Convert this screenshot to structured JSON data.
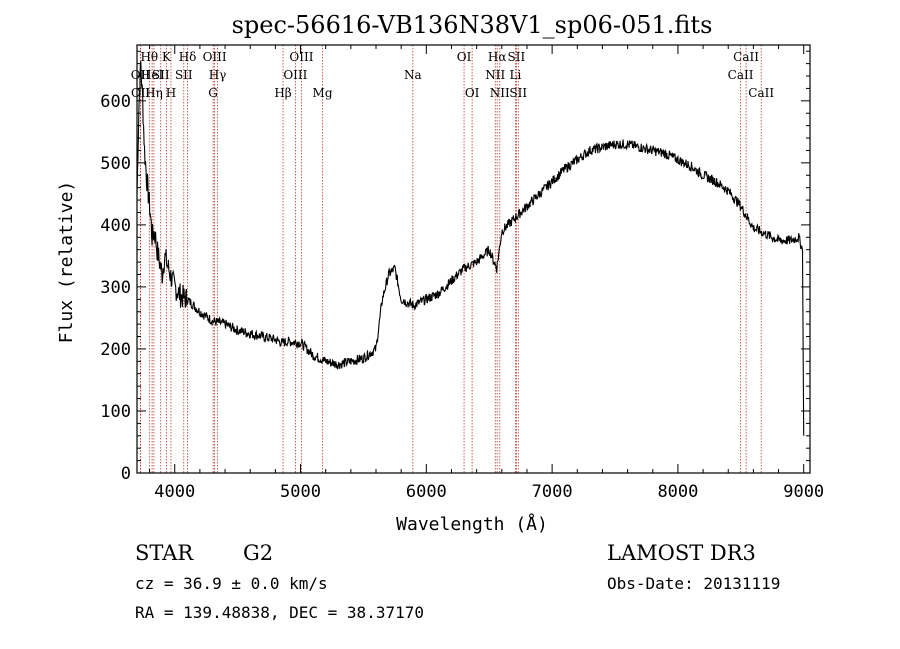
{
  "chart_data": {
    "type": "line",
    "title": "spec-56616-VB136N38V1_sp06-051.fits",
    "xlabel": "Wavelength (Å)",
    "ylabel": "Flux (relative)",
    "xlim": [
      3700,
      9050
    ],
    "ylim": [
      0,
      690
    ],
    "x_ticks": [
      4000,
      5000,
      6000,
      7000,
      8000,
      9000
    ],
    "y_ticks": [
      0,
      100,
      200,
      300,
      400,
      500,
      600
    ],
    "series": [
      {
        "name": "flux",
        "x": [
          3700,
          3715,
          3730,
          3745,
          3760,
          3775,
          3790,
          3805,
          3820,
          3840,
          3860,
          3880,
          3900,
          3920,
          3950,
          3980,
          4000,
          4050,
          4100,
          4150,
          4200,
          4300,
          4400,
          4500,
          4600,
          4700,
          4800,
          4850,
          4900,
          5000,
          5100,
          5150,
          5200,
          5300,
          5400,
          5500,
          5600,
          5650,
          5700,
          5750,
          5800,
          5850,
          5900,
          6000,
          6100,
          6200,
          6300,
          6400,
          6500,
          6560,
          6600,
          6700,
          6800,
          6900,
          7000,
          7100,
          7200,
          7300,
          7400,
          7500,
          7600,
          7700,
          7800,
          7900,
          8000,
          8100,
          8200,
          8300,
          8400,
          8500,
          8600,
          8700,
          8800,
          8900,
          8960,
          8990,
          9000
        ],
        "y": [
          450,
          590,
          660,
          600,
          520,
          480,
          450,
          420,
          380,
          390,
          360,
          340,
          320,
          350,
          330,
          310,
          300,
          285,
          280,
          270,
          260,
          245,
          240,
          230,
          225,
          220,
          215,
          210,
          212,
          210,
          190,
          185,
          180,
          175,
          180,
          185,
          200,
          280,
          320,
          330,
          280,
          275,
          270,
          280,
          290,
          310,
          330,
          340,
          360,
          330,
          390,
          410,
          430,
          450,
          470,
          490,
          505,
          520,
          525,
          530,
          530,
          525,
          520,
          515,
          505,
          495,
          480,
          470,
          455,
          430,
          395,
          385,
          375,
          375,
          380,
          360,
          60
        ]
      }
    ],
    "line_markers": [
      {
        "label": "Hθ",
        "x": 3798,
        "row": 0
      },
      {
        "label": "OII",
        "x": 3727,
        "row": 1
      },
      {
        "label": "OII",
        "x": 3729,
        "row": 2
      },
      {
        "label": "HeI",
        "x": 3820,
        "row": 1
      },
      {
        "label": "Hη",
        "x": 3835,
        "row": 2
      },
      {
        "label": "K",
        "x": 3934,
        "row": 0
      },
      {
        "label": "SII",
        "x": 3889,
        "row": 1
      },
      {
        "label": "H",
        "x": 3970,
        "row": 2
      },
      {
        "label": "Hδ",
        "x": 4102,
        "row": 0
      },
      {
        "label": "SII",
        "x": 4072,
        "row": 1
      },
      {
        "label": "OIII",
        "x": 4317,
        "row": 0
      },
      {
        "label": "Hγ",
        "x": 4340,
        "row": 1
      },
      {
        "label": "G",
        "x": 4305,
        "row": 2
      },
      {
        "label": "Hβ",
        "x": 4861,
        "row": 2
      },
      {
        "label": "OIII",
        "x": 5007,
        "row": 0
      },
      {
        "label": "OIII",
        "x": 4959,
        "row": 1
      },
      {
        "label": "Mg",
        "x": 5175,
        "row": 2
      },
      {
        "label": "Na",
        "x": 5893,
        "row": 1
      },
      {
        "label": "OI",
        "x": 6300,
        "row": 0
      },
      {
        "label": "OI",
        "x": 6364,
        "row": 2
      },
      {
        "label": "Hα",
        "x": 6563,
        "row": 0
      },
      {
        "label": "NII",
        "x": 6548,
        "row": 1
      },
      {
        "label": "NII",
        "x": 6584,
        "row": 2
      },
      {
        "label": "SII",
        "x": 6716,
        "row": 0
      },
      {
        "label": "Li",
        "x": 6708,
        "row": 1
      },
      {
        "label": "SII",
        "x": 6731,
        "row": 2
      },
      {
        "label": "CaII",
        "x": 8542,
        "row": 0
      },
      {
        "label": "CaII",
        "x": 8498,
        "row": 1
      },
      {
        "label": "CaII",
        "x": 8662,
        "row": 2
      }
    ]
  },
  "info": {
    "class_label": "STAR",
    "subclass": "G2",
    "survey": "LAMOST DR3",
    "redshift_text": "cz = 36.9 ± 0.0 km/s",
    "obs_date_text": "Obs-Date: 20131119",
    "coords_text": "RA = 139.48838, DEC =  38.37170"
  },
  "colors": {
    "line_marker": "#c0392b",
    "spectrum": "#000000"
  }
}
